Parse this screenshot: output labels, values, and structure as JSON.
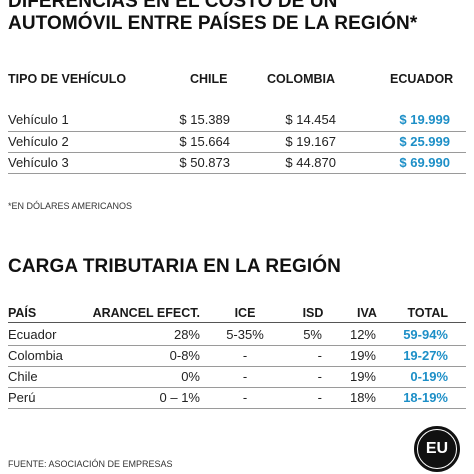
{
  "title": {
    "line1": "DIFERENCIAS EN EL COSTO DE UN",
    "line2": "AUTOMÓVIL ENTRE PAÍSES DE LA REGIÓN*"
  },
  "vehicles": {
    "headers": {
      "type": "TIPO DE VEHÍCULO",
      "chile": "CHILE",
      "colombia": "COLOMBIA",
      "ecuador": "ECUADOR"
    },
    "rows": [
      {
        "name": "Vehículo 1",
        "chile": "$ 15.389",
        "colombia": "$ 14.454",
        "ecuador": "$ 19.999"
      },
      {
        "name": "Vehículo 2",
        "chile": "$ 15.664",
        "colombia": "$ 19.167",
        "ecuador": "$ 25.999"
      },
      {
        "name": "Vehículo 3",
        "chile": "$ 50.873",
        "colombia": "$ 44.870",
        "ecuador": "$ 69.990"
      }
    ],
    "note": "*EN DÓLARES AMERICANOS"
  },
  "tax": {
    "title": "CARGA TRIBUTARIA EN LA REGIÓN",
    "headers": {
      "country": "PAÍS",
      "tariff": "ARANCEL EFECT.",
      "ice": "ICE",
      "isd": "ISD",
      "iva": "IVA",
      "total": "TOTAL"
    },
    "rows": [
      {
        "country": "Ecuador",
        "tariff": "28%",
        "ice": "5-35%",
        "isd": "5%",
        "iva": "12%",
        "total": "59-94%"
      },
      {
        "country": "Colombia",
        "tariff": "0-8%",
        "ice": "-",
        "isd": "-",
        "iva": "19%",
        "total": "19-27%"
      },
      {
        "country": "Chile",
        "tariff": "0%",
        "ice": "-",
        "isd": "-",
        "iva": "19%",
        "total": "0-19%"
      },
      {
        "country": "Perú",
        "tariff": "0 – 1%",
        "ice": "-",
        "isd": "-",
        "iva": "18%",
        "total": "18-19%"
      }
    ]
  },
  "footer": "FUENTE: ASOCIACIÓN DE EMPRESAS",
  "logo": "EU",
  "colors": {
    "highlight": "#1d8fc7"
  }
}
